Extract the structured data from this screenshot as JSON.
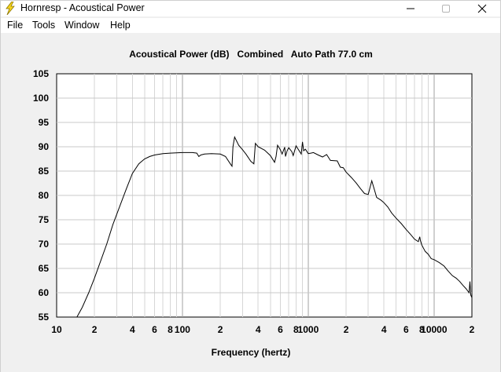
{
  "window": {
    "title": "Hornresp - Acoustical Power",
    "icon": "lightning-bolt-icon"
  },
  "menu": {
    "items": [
      {
        "label": "File"
      },
      {
        "label": "Tools"
      },
      {
        "label": "Window"
      },
      {
        "label": "Help"
      }
    ]
  },
  "chart_data": {
    "type": "line",
    "title": "Acoustical Power (dB)   Combined   Auto Path 77.0 cm",
    "xlabel": "Frequency (hertz)",
    "ylabel": "",
    "x_scale": "log",
    "xlim": [
      10,
      20000
    ],
    "ylim": [
      55,
      105
    ],
    "grid": true,
    "line_color": "#000000",
    "y_ticks": [
      55,
      60,
      65,
      70,
      75,
      80,
      85,
      90,
      95,
      100,
      105
    ],
    "x_tick_labels": [
      {
        "value": 10,
        "label": "10"
      },
      {
        "value": 20,
        "label": "2"
      },
      {
        "value": 40,
        "label": "4"
      },
      {
        "value": 60,
        "label": "6"
      },
      {
        "value": 80,
        "label": "8"
      },
      {
        "value": 100,
        "label": "100"
      },
      {
        "value": 200,
        "label": "2"
      },
      {
        "value": 400,
        "label": "4"
      },
      {
        "value": 600,
        "label": "6"
      },
      {
        "value": 800,
        "label": "8"
      },
      {
        "value": 1000,
        "label": "1000"
      },
      {
        "value": 2000,
        "label": "2"
      },
      {
        "value": 4000,
        "label": "4"
      },
      {
        "value": 6000,
        "label": "6"
      },
      {
        "value": 8000,
        "label": "8"
      },
      {
        "value": 10000,
        "label": "10000"
      },
      {
        "value": 20000,
        "label": "2"
      }
    ],
    "series": [
      {
        "x": [
          14.5,
          16,
          18,
          20,
          22,
          25,
          28,
          32,
          36,
          40,
          45,
          50,
          55,
          60,
          70,
          80,
          100,
          120,
          130,
          135,
          140,
          150,
          170,
          200,
          220,
          240,
          248,
          252,
          260,
          280,
          300,
          320,
          350,
          370,
          380,
          400,
          450,
          500,
          540,
          555,
          570,
          600,
          620,
          650,
          660,
          680,
          700,
          740,
          760,
          800,
          880,
          900,
          920,
          950,
          1000,
          1050,
          1100,
          1200,
          1300,
          1400,
          1500,
          1700,
          1800,
          1900,
          2000,
          2200,
          2400,
          2600,
          2800,
          3000,
          3200,
          3500,
          3800,
          4000,
          4300,
          4600,
          5000,
          5500,
          6000,
          6500,
          7000,
          7500,
          7700,
          7800,
          8000,
          8500,
          9000,
          9500,
          10000,
          11000,
          12000,
          13000,
          14000,
          15000,
          16000,
          17000,
          18000,
          19000,
          19300,
          19600,
          20000
        ],
        "y": [
          55,
          57,
          60,
          63,
          66,
          70,
          74,
          78,
          81.5,
          84.5,
          86.5,
          87.5,
          88,
          88.3,
          88.6,
          88.7,
          88.8,
          88.8,
          88.7,
          88,
          88.3,
          88.5,
          88.6,
          88.5,
          88,
          86.5,
          86,
          90,
          92,
          90.3,
          89.4,
          88.5,
          87,
          86.5,
          90.7,
          90,
          89.3,
          88.2,
          86.8,
          88,
          90.3,
          89.4,
          88.5,
          89.9,
          88,
          89.2,
          89.8,
          89,
          88.2,
          90.2,
          88.5,
          91,
          89.2,
          89.5,
          88.6,
          88.7,
          88.8,
          88.3,
          87.9,
          88.4,
          87.2,
          87.1,
          85.8,
          85.7,
          84.8,
          83.7,
          82.6,
          81.4,
          80.4,
          80.2,
          83,
          79.6,
          79,
          78.5,
          77.6,
          76.4,
          75.3,
          74.2,
          73,
          72,
          71,
          70.5,
          71.5,
          70.7,
          69.8,
          68.5,
          67.9,
          67,
          66.8,
          66.2,
          65.5,
          64.4,
          63.5,
          63,
          62.3,
          61.5,
          60.8,
          60,
          62.3,
          59.5,
          59
        ]
      }
    ]
  }
}
